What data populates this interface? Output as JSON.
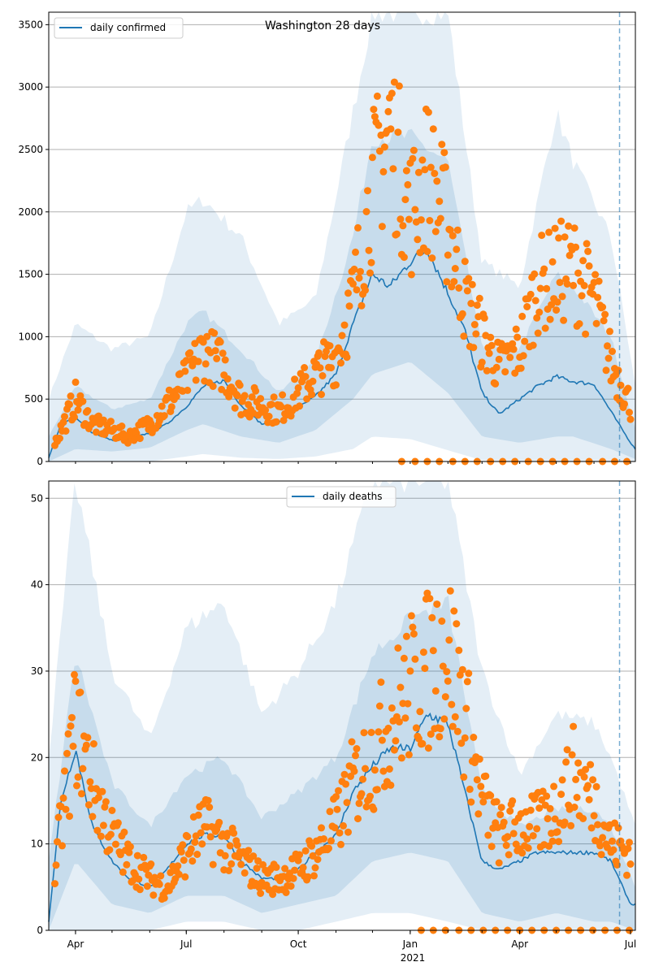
{
  "colors": {
    "line": "#1f77b4",
    "points": "#ff7f0e",
    "band": "#1f77b4",
    "grid": "#b0b0b0",
    "forecast_line": "#1f77b4"
  },
  "chart_data": [
    {
      "type": "line",
      "title": "Washington 28 days",
      "legend": {
        "entries": [
          "daily confirmed"
        ],
        "placement": "top-left"
      },
      "ylim": [
        0,
        3600
      ],
      "y_ticks": [
        0,
        500,
        1000,
        1500,
        2000,
        2500,
        3000,
        3500
      ],
      "x_ticks": [],
      "grid": true,
      "forecast_start": "2021-06-22",
      "series": [
        {
          "name": "daily confirmed",
          "kind": "model",
          "x": [
            "2020-03-10",
            "2020-03-20",
            "2020-04-01",
            "2020-04-15",
            "2020-05-01",
            "2020-05-15",
            "2020-06-01",
            "2020-06-15",
            "2020-07-01",
            "2020-07-15",
            "2020-08-01",
            "2020-08-15",
            "2020-09-01",
            "2020-09-15",
            "2020-10-01",
            "2020-10-15",
            "2020-11-01",
            "2020-11-15",
            "2020-12-01",
            "2020-12-15",
            "2021-01-01",
            "2021-01-15",
            "2021-02-01",
            "2021-02-15",
            "2021-03-01",
            "2021-03-15",
            "2021-04-01",
            "2021-04-15",
            "2021-05-01",
            "2021-05-15",
            "2021-06-01",
            "2021-06-15",
            "2021-07-01",
            "2021-07-05"
          ],
          "values": [
            30,
            300,
            350,
            230,
            170,
            180,
            230,
            300,
            440,
            600,
            650,
            450,
            300,
            320,
            430,
            520,
            700,
            1100,
            1500,
            1400,
            1600,
            1700,
            1350,
            1050,
            550,
            380,
            500,
            600,
            680,
            640,
            620,
            400,
            150,
            100
          ]
        },
        {
          "name": "",
          "kind": "observed",
          "x": [
            "2020-03-15",
            "2020-04-01",
            "2020-04-15",
            "2020-05-01",
            "2020-05-15",
            "2020-06-01",
            "2020-06-15",
            "2020-07-01",
            "2020-07-15",
            "2020-08-01",
            "2020-08-15",
            "2020-09-01",
            "2020-09-15",
            "2020-10-01",
            "2020-10-15",
            "2020-11-01",
            "2020-11-15",
            "2020-12-01",
            "2020-12-15",
            "2021-01-01",
            "2021-01-15",
            "2021-02-01",
            "2021-02-15",
            "2021-03-01",
            "2021-03-15",
            "2021-04-01",
            "2021-04-15",
            "2021-05-01",
            "2021-05-15",
            "2021-06-01",
            "2021-06-15",
            "2021-07-01"
          ],
          "values": [
            150,
            500,
            300,
            250,
            200,
            300,
            450,
            650,
            900,
            750,
            500,
            450,
            400,
            550,
            700,
            850,
            1300,
            2200,
            2700,
            2000,
            2300,
            1900,
            1300,
            1000,
            750,
            900,
            1400,
            1500,
            1550,
            1300,
            800,
            450
          ]
        },
        {
          "name": "",
          "kind": "band_90",
          "x": [
            "2020-03-10",
            "2020-04-01",
            "2020-05-01",
            "2020-06-01",
            "2020-07-01",
            "2020-07-15",
            "2020-08-15",
            "2020-09-15",
            "2020-10-15",
            "2020-11-15",
            "2020-12-01",
            "2021-01-01",
            "2021-02-01",
            "2021-03-01",
            "2021-04-01",
            "2021-05-01",
            "2021-05-15",
            "2021-06-15",
            "2021-07-05"
          ],
          "upper": [
            500,
            1100,
            900,
            1000,
            2000,
            2100,
            1800,
            1100,
            1300,
            2800,
            3600,
            3600,
            3600,
            1600,
            1400,
            2800,
            2400,
            1800,
            600
          ],
          "lower": [
            0,
            0,
            0,
            0,
            40,
            60,
            30,
            20,
            40,
            100,
            200,
            180,
            90,
            10,
            0,
            0,
            0,
            0,
            0
          ]
        },
        {
          "name": "",
          "kind": "band_50",
          "x": [
            "2020-03-10",
            "2020-04-01",
            "2020-05-01",
            "2020-06-01",
            "2020-07-01",
            "2020-07-15",
            "2020-08-15",
            "2020-09-15",
            "2020-10-15",
            "2020-11-15",
            "2020-12-01",
            "2021-01-01",
            "2021-02-01",
            "2021-03-01",
            "2021-04-01",
            "2021-05-01",
            "2021-05-15",
            "2021-06-15",
            "2021-07-05"
          ],
          "upper": [
            200,
            600,
            420,
            500,
            1100,
            1200,
            900,
            550,
            800,
            1800,
            2600,
            2600,
            2400,
            900,
            900,
            1500,
            1400,
            1000,
            250
          ],
          "lower": [
            0,
            100,
            80,
            110,
            250,
            300,
            200,
            150,
            250,
            500,
            700,
            800,
            550,
            200,
            150,
            200,
            200,
            100,
            20
          ]
        },
        {
          "name": "",
          "kind": "zero_points",
          "x": [
            "2020-12-25",
            "2021-01-05",
            "2021-01-15",
            "2021-01-25",
            "2021-02-05",
            "2021-02-15",
            "2021-02-25",
            "2021-03-08",
            "2021-03-18",
            "2021-03-28",
            "2021-04-08",
            "2021-04-18",
            "2021-04-28",
            "2021-05-08",
            "2021-05-18",
            "2021-05-28",
            "2021-06-08",
            "2021-06-18",
            "2021-06-28"
          ],
          "values": [
            0,
            0,
            0,
            0,
            0,
            0,
            0,
            0,
            0,
            0,
            0,
            0,
            0,
            0,
            0,
            0,
            0,
            0,
            0
          ]
        }
      ]
    },
    {
      "type": "line",
      "title": "",
      "legend": {
        "entries": [
          "daily deaths"
        ],
        "placement": "top-center"
      },
      "ylim": [
        0,
        52
      ],
      "y_ticks": [
        0,
        10,
        20,
        30,
        40,
        50
      ],
      "x_ticks": [
        "Apr",
        "Jul",
        "Oct",
        "Jan",
        "Apr",
        "Jul"
      ],
      "x_tick_dates": [
        "2020-04-01",
        "2020-07-01",
        "2020-10-01",
        "2021-01-01",
        "2021-04-01",
        "2021-07-01"
      ],
      "x_sublabel": "2021",
      "grid": true,
      "forecast_start": "2021-06-22",
      "series": [
        {
          "name": "daily deaths",
          "kind": "model",
          "x": [
            "2020-03-10",
            "2020-03-20",
            "2020-04-01",
            "2020-04-15",
            "2020-05-01",
            "2020-05-15",
            "2020-06-01",
            "2020-06-15",
            "2020-07-01",
            "2020-07-15",
            "2020-08-01",
            "2020-08-15",
            "2020-09-01",
            "2020-09-15",
            "2020-10-01",
            "2020-10-15",
            "2020-11-01",
            "2020-11-15",
            "2020-12-01",
            "2020-12-15",
            "2021-01-01",
            "2021-01-15",
            "2021-02-01",
            "2021-02-15",
            "2021-03-01",
            "2021-03-15",
            "2021-04-01",
            "2021-04-15",
            "2021-05-01",
            "2021-05-15",
            "2021-06-01",
            "2021-06-15",
            "2021-07-01",
            "2021-07-05"
          ],
          "values": [
            1,
            15,
            21,
            12,
            8,
            6,
            5,
            7,
            10,
            11,
            11,
            8,
            6,
            6,
            7,
            9,
            11,
            16,
            19,
            21,
            21,
            25,
            24,
            16,
            8,
            7,
            8,
            9,
            9,
            9,
            9,
            8,
            3,
            3
          ]
        },
        {
          "name": "",
          "kind": "observed",
          "x": [
            "2020-03-15",
            "2020-04-01",
            "2020-04-15",
            "2020-05-01",
            "2020-05-15",
            "2020-06-01",
            "2020-06-15",
            "2020-07-01",
            "2020-07-15",
            "2020-08-01",
            "2020-08-15",
            "2020-09-01",
            "2020-09-15",
            "2020-10-01",
            "2020-10-15",
            "2020-11-01",
            "2020-11-15",
            "2020-12-01",
            "2020-12-15",
            "2021-01-01",
            "2021-01-15",
            "2021-02-01",
            "2021-02-15",
            "2021-03-01",
            "2021-03-15",
            "2021-04-01",
            "2021-04-15",
            "2021-05-01",
            "2021-05-15",
            "2021-06-01",
            "2021-06-15",
            "2021-07-01"
          ],
          "values": [
            7,
            24,
            17,
            11,
            8,
            6,
            5,
            9,
            12,
            10,
            8,
            6,
            6,
            7,
            9,
            12,
            17,
            20,
            24,
            28,
            30,
            33,
            25,
            15,
            11,
            12,
            12,
            14,
            18,
            15,
            10,
            9
          ]
        },
        {
          "name": "",
          "kind": "band_90",
          "x": [
            "2020-03-10",
            "2020-04-01",
            "2020-05-01",
            "2020-06-01",
            "2020-07-01",
            "2020-08-01",
            "2020-09-01",
            "2020-10-01",
            "2020-11-01",
            "2020-12-01",
            "2021-01-01",
            "2021-02-01",
            "2021-03-01",
            "2021-04-01",
            "2021-05-01",
            "2021-06-01",
            "2021-06-15",
            "2021-07-05"
          ],
          "upper": [
            20,
            52,
            30,
            22,
            35,
            38,
            25,
            30,
            38,
            52,
            52,
            52,
            30,
            18,
            25,
            24,
            20,
            12
          ],
          "lower": [
            0,
            0,
            0,
            0,
            1,
            1,
            0,
            0,
            1,
            2,
            2,
            1,
            0,
            0,
            0,
            0,
            0,
            0
          ]
        },
        {
          "name": "",
          "kind": "band_50",
          "x": [
            "2020-03-10",
            "2020-04-01",
            "2020-05-01",
            "2020-06-01",
            "2020-07-01",
            "2020-08-01",
            "2020-09-01",
            "2020-10-01",
            "2020-11-01",
            "2020-12-01",
            "2021-01-01",
            "2021-02-01",
            "2021-03-01",
            "2021-04-01",
            "2021-05-01",
            "2021-06-01",
            "2021-06-15",
            "2021-07-05"
          ],
          "upper": [
            8,
            32,
            17,
            12,
            18,
            20,
            13,
            16,
            20,
            32,
            36,
            38,
            16,
            12,
            14,
            14,
            12,
            5
          ],
          "lower": [
            0,
            8,
            3,
            2,
            4,
            4,
            2,
            3,
            4,
            8,
            9,
            8,
            2,
            1,
            2,
            1,
            1,
            0
          ]
        },
        {
          "name": "",
          "kind": "zero_points",
          "x": [
            "2021-01-10",
            "2021-01-20",
            "2021-01-30",
            "2021-02-10",
            "2021-02-20",
            "2021-03-02",
            "2021-03-12",
            "2021-03-22",
            "2021-04-01",
            "2021-04-11",
            "2021-04-21",
            "2021-05-01",
            "2021-05-11",
            "2021-05-21",
            "2021-05-31",
            "2021-06-10",
            "2021-06-20",
            "2021-06-30"
          ],
          "values": [
            0,
            0,
            0,
            0,
            0,
            0,
            0,
            0,
            0,
            0,
            0,
            0,
            0,
            0,
            0,
            0,
            0,
            0
          ]
        }
      ]
    }
  ]
}
